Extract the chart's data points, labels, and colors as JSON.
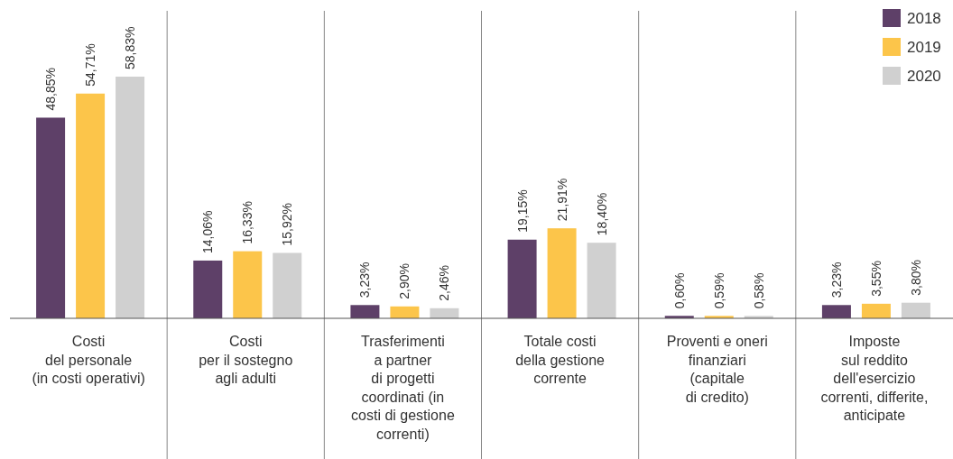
{
  "chart_data": {
    "type": "bar",
    "categories": [
      "Costi\ndel personale\n(in costi operativi)",
      "Costi\nper il sostegno\nagli adulti",
      "Trasferimenti\na partner\ndi progetti\ncoordinati (in\ncosti di gestione\ncorrenti)",
      "Totale costi\ndella gestione\ncorrente",
      "Proventi e oneri\nfinanziari\n(capitale\ndi credito)",
      "Imposte\nsul reddito\ndell'esercizio\ncorrenti, differite,\nanticipate"
    ],
    "series": [
      {
        "name": "2018",
        "color": "#5e4068",
        "values": [
          48.85,
          14.06,
          3.23,
          19.15,
          0.6,
          3.23
        ],
        "value_labels": [
          "48,85%",
          "14,06%",
          "3,23%",
          "19,15%",
          "0,60%",
          "3,23%"
        ]
      },
      {
        "name": "2019",
        "color": "#fcc54a",
        "values": [
          54.71,
          16.33,
          2.9,
          21.91,
          0.59,
          3.55
        ],
        "value_labels": [
          "54,71%",
          "16,33%",
          "2,90%",
          "21,91%",
          "0,59%",
          "3,55%"
        ]
      },
      {
        "name": "2020",
        "color": "#d0d0d0",
        "values": [
          58.83,
          15.92,
          2.46,
          18.4,
          0.58,
          3.8
        ],
        "value_labels": [
          "58,83%",
          "15,92%",
          "2,46%",
          "18,40%",
          "0,58%",
          "3,80%"
        ]
      }
    ],
    "legend": "top right"
  }
}
